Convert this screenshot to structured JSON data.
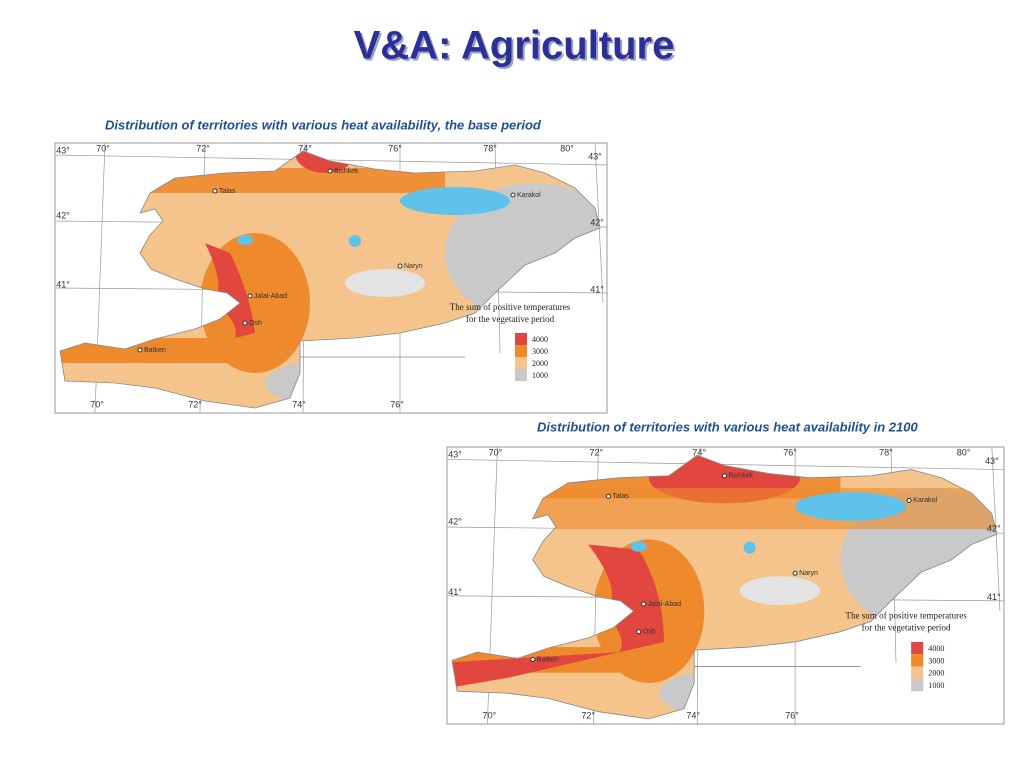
{
  "title": "V&A: Agriculture",
  "maps": [
    {
      "caption": "Distribution of territories with various heat availability, the base period",
      "grid_labels": [
        "43°",
        "70°",
        "72°",
        "74°",
        "76°",
        "78°",
        "80°",
        "43°",
        "42°",
        "41°",
        "42°",
        "41°",
        "70°",
        "72°",
        "74°",
        "76°"
      ],
      "cities": [
        "Bishkek",
        "Talas",
        "Karakol",
        "Naryn",
        "Jalal-Abad",
        "Osh",
        "Batken"
      ],
      "legend": {
        "title": [
          "The sum of positive temperatures",
          "for the vegetative period"
        ],
        "items": [
          {
            "value": 4000,
            "color": "#e2473f"
          },
          {
            "value": 3000,
            "color": "#ee8a2c"
          },
          {
            "value": 2000,
            "color": "#f5c48c"
          },
          {
            "value": 1000,
            "color": "#c9c9c9"
          }
        ]
      }
    },
    {
      "caption": "Distribution of territories with various heat availability in 2100",
      "grid_labels": [
        "43°",
        "70°",
        "72°",
        "74°",
        "76°",
        "78°",
        "80°",
        "43°",
        "42°",
        "41°",
        "42°",
        "41°",
        "70°",
        "72°",
        "74°",
        "76°"
      ],
      "cities": [
        "Bishkek",
        "Talas",
        "Karakol",
        "Naryn",
        "Jalal-Abad",
        "Osh",
        "Batken"
      ],
      "legend": {
        "title": [
          "The sum of positive temperatures",
          "for the vegetative period"
        ],
        "items": [
          {
            "value": 4000,
            "color": "#e2473f"
          },
          {
            "value": 3000,
            "color": "#ee8a2c"
          },
          {
            "value": 2000,
            "color": "#f5c48c"
          },
          {
            "value": 1000,
            "color": "#c9c9c9"
          }
        ]
      }
    }
  ]
}
